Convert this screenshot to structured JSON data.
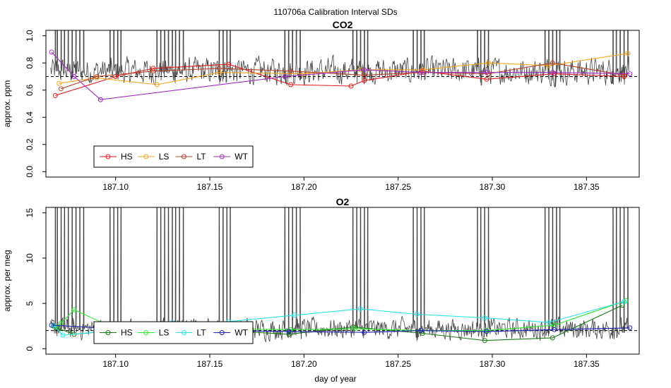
{
  "figure": {
    "title": "110706a   Calibration Interval SDs",
    "xlabel": "day of year"
  },
  "chart_data": [
    {
      "type": "line",
      "title": "CO2",
      "ylabel": "approx. ppm",
      "xlim": [
        187.063,
        187.378
      ],
      "ylim": [
        -0.04,
        1.04
      ],
      "x_ticks": [
        187.1,
        187.15,
        187.2,
        187.25,
        187.3,
        187.35
      ],
      "x_tick_labels": [
        "187.10",
        "187.15",
        "187.20",
        "187.25",
        "187.30",
        "187.35"
      ],
      "y_ticks": [
        0.0,
        0.2,
        0.4,
        0.6,
        0.8,
        1.0
      ],
      "y_tick_labels": [
        "0.0",
        "0.2",
        "0.4",
        "0.6",
        "0.8",
        "1.0"
      ],
      "reference_line": 0.7,
      "legend_position": "bottom-left",
      "background_trace": {
        "color": "#444444",
        "mean": 0.74,
        "noise": 0.075,
        "spike_groups": [
          [
            187.068,
            187.069,
            187.071,
            187.073,
            187.075,
            187.077,
            187.079,
            187.081,
            187.083
          ],
          [
            187.097,
            187.099,
            187.101,
            187.103
          ],
          [
            187.122,
            187.124,
            187.126,
            187.128,
            187.13,
            187.132,
            187.134,
            187.136
          ],
          [
            187.155,
            187.157,
            187.159,
            187.161
          ],
          [
            187.19,
            187.192,
            187.194,
            187.196,
            187.198
          ],
          [
            187.226,
            187.228,
            187.23,
            187.232,
            187.234
          ],
          [
            187.258,
            187.26,
            187.262,
            187.264
          ],
          [
            187.292,
            187.294,
            187.296,
            187.298
          ],
          [
            187.328,
            187.33,
            187.332,
            187.334,
            187.336
          ],
          [
            187.364,
            187.366,
            187.368,
            187.37,
            187.372
          ]
        ]
      },
      "series": [
        {
          "name": "HS",
          "color": "#e41a1c",
          "x": [
            187.068,
            187.1,
            187.12,
            187.16,
            187.193,
            187.225,
            187.232,
            187.263,
            187.297,
            187.333,
            187.37
          ],
          "y": [
            0.56,
            0.7,
            0.76,
            0.79,
            0.64,
            0.63,
            0.67,
            0.74,
            0.68,
            0.72,
            0.7
          ]
        },
        {
          "name": "LS",
          "color": "#f5a623",
          "x": [
            187.07,
            187.09,
            187.122,
            187.155,
            187.2,
            187.23,
            187.263,
            187.298,
            187.33,
            187.372
          ],
          "y": [
            0.65,
            0.69,
            0.64,
            0.73,
            0.72,
            0.75,
            0.75,
            0.8,
            0.78,
            0.87
          ]
        },
        {
          "name": "LT",
          "color": "#b5422a",
          "x": [
            187.071,
            187.09,
            187.12,
            187.155,
            187.193,
            187.232,
            187.263,
            187.298,
            187.332,
            187.37
          ],
          "y": [
            0.61,
            0.7,
            0.74,
            0.76,
            0.74,
            0.71,
            0.73,
            0.72,
            0.8,
            0.71
          ]
        },
        {
          "name": "WT",
          "color": "#a32cc4",
          "x": [
            187.066,
            187.078,
            187.092,
            187.19,
            187.232,
            187.262,
            187.297,
            187.332,
            187.373
          ],
          "y": [
            0.88,
            0.7,
            0.53,
            0.7,
            0.75,
            0.73,
            0.73,
            0.73,
            0.72
          ]
        }
      ]
    },
    {
      "type": "line",
      "title": "O2",
      "ylabel": "approx. per meg",
      "xlim": [
        187.063,
        187.378
      ],
      "ylim": [
        -0.6,
        15.6
      ],
      "x_ticks": [
        187.1,
        187.15,
        187.2,
        187.25,
        187.3,
        187.35
      ],
      "x_tick_labels": [
        "187.10",
        "187.15",
        "187.20",
        "187.25",
        "187.30",
        "187.35"
      ],
      "y_ticks": [
        0,
        5,
        10,
        15
      ],
      "y_tick_labels": [
        "0",
        "5",
        "10",
        "15"
      ],
      "reference_line": 2.0,
      "legend_position": "bottom-left",
      "background_trace": {
        "color": "#444444",
        "mean": 2.2,
        "noise": 0.9,
        "spike_groups": [
          [
            187.068,
            187.069,
            187.071,
            187.073,
            187.075,
            187.077,
            187.079,
            187.081,
            187.083
          ],
          [
            187.097,
            187.099,
            187.101,
            187.103
          ],
          [
            187.122,
            187.124,
            187.126,
            187.128,
            187.13,
            187.132,
            187.134,
            187.136
          ],
          [
            187.155,
            187.157,
            187.159,
            187.161
          ],
          [
            187.19,
            187.192,
            187.194,
            187.196,
            187.198
          ],
          [
            187.226,
            187.228,
            187.23,
            187.232,
            187.234
          ],
          [
            187.258,
            187.26,
            187.262,
            187.264
          ],
          [
            187.292,
            187.294,
            187.296,
            187.298
          ],
          [
            187.328,
            187.33,
            187.332,
            187.334,
            187.336
          ],
          [
            187.364,
            187.366,
            187.368,
            187.37,
            187.372
          ]
        ]
      },
      "series": [
        {
          "name": "HS",
          "color": "#1a7a1a",
          "x": [
            187.067,
            187.07,
            187.078,
            187.1,
            187.122,
            187.158,
            187.192,
            187.226,
            187.263,
            187.296,
            187.332,
            187.369
          ],
          "y": [
            2.5,
            2.2,
            1.6,
            2.0,
            2.6,
            2.0,
            1.6,
            2.4,
            1.7,
            0.9,
            1.2,
            4.8
          ]
        },
        {
          "name": "LS",
          "color": "#2ee62e",
          "x": [
            187.068,
            187.071,
            187.078,
            187.1,
            187.122,
            187.157,
            187.193,
            187.227,
            187.262,
            187.297,
            187.333,
            187.371
          ],
          "y": [
            2.4,
            2.8,
            4.3,
            2.2,
            2.4,
            2.2,
            2.1,
            2.2,
            2.0,
            2.0,
            2.6,
            5.3
          ]
        },
        {
          "name": "LT",
          "color": "#27e6e6",
          "x": [
            187.067,
            187.072,
            187.1,
            187.13,
            187.16,
            187.195,
            187.23,
            187.26,
            187.296,
            187.33,
            187.37
          ],
          "y": [
            2.6,
            1.5,
            2.0,
            2.9,
            3.0,
            3.7,
            4.4,
            3.8,
            3.4,
            2.9,
            5.2
          ]
        },
        {
          "name": "WT",
          "color": "#1f22b5",
          "x": [
            187.066,
            187.1,
            187.155,
            187.192,
            187.232,
            187.262,
            187.297,
            187.333,
            187.373
          ],
          "y": [
            2.6,
            2.2,
            2.0,
            1.9,
            1.8,
            2.0,
            1.9,
            2.1,
            2.3
          ]
        }
      ]
    }
  ]
}
